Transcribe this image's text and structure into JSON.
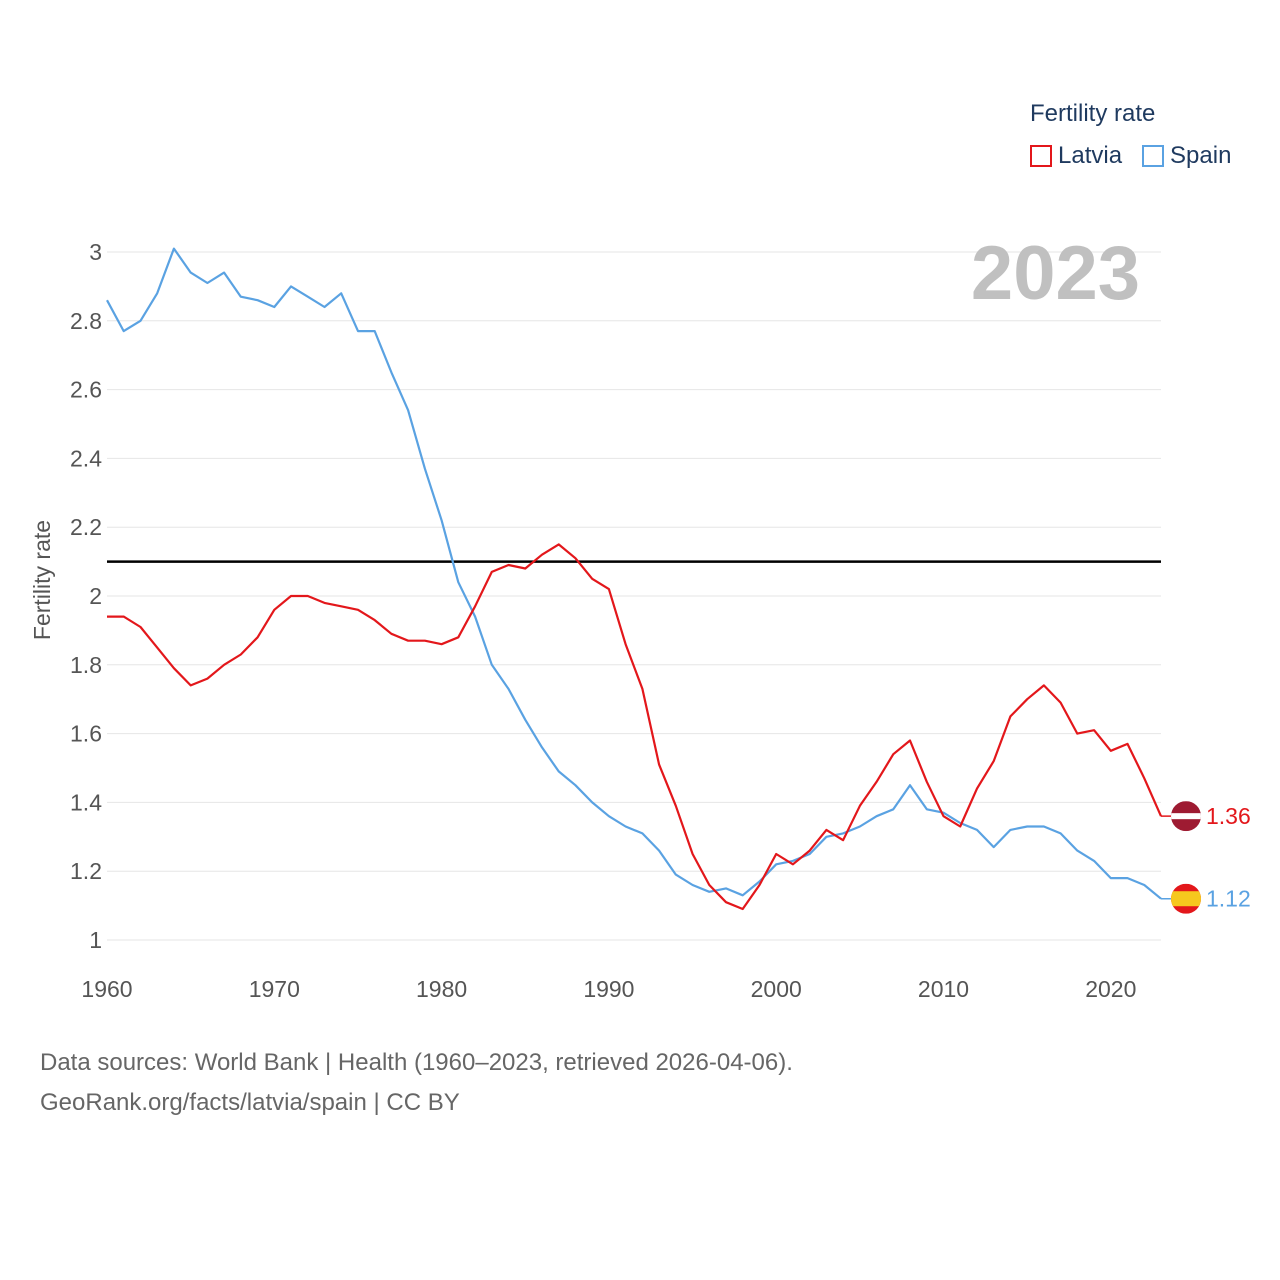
{
  "legend": {
    "title": "Fertility rate"
  },
  "footer": {
    "line1": "Data sources: World Bank | Health (1960–2023, retrieved 2026-04-06).",
    "line2": "GeoRank.org/facts/latvia/spain | CC BY"
  },
  "chart_data": {
    "type": "line",
    "title": "Fertility rate",
    "year_label": "2023",
    "xlabel": "",
    "ylabel": "Fertility rate",
    "xlim": [
      1960,
      2023
    ],
    "ylim": [
      1,
      3
    ],
    "x_ticks": [
      "1960",
      "1970",
      "1980",
      "1990",
      "2000",
      "2010",
      "2020"
    ],
    "y_ticks": [
      "1",
      "1.2",
      "1.4",
      "1.6",
      "1.8",
      "2",
      "2.2",
      "2.4",
      "2.6",
      "2.8",
      "3"
    ],
    "reference_line": {
      "y": 2.1,
      "color": "#000000"
    },
    "grid": true,
    "legend_position": "top-right",
    "x": [
      1960,
      1961,
      1962,
      1963,
      1964,
      1965,
      1966,
      1967,
      1968,
      1969,
      1970,
      1971,
      1972,
      1973,
      1974,
      1975,
      1976,
      1977,
      1978,
      1979,
      1980,
      1981,
      1982,
      1983,
      1984,
      1985,
      1986,
      1987,
      1988,
      1989,
      1990,
      1991,
      1992,
      1993,
      1994,
      1995,
      1996,
      1997,
      1998,
      1999,
      2000,
      2001,
      2002,
      2003,
      2004,
      2005,
      2006,
      2007,
      2008,
      2009,
      2010,
      2011,
      2012,
      2013,
      2014,
      2015,
      2016,
      2017,
      2018,
      2019,
      2020,
      2021,
      2022,
      2023
    ],
    "series": [
      {
        "name": "Latvia",
        "color": "#e3171b",
        "end_label": "1.36",
        "values": [
          1.94,
          1.94,
          1.91,
          1.85,
          1.79,
          1.74,
          1.76,
          1.8,
          1.83,
          1.88,
          1.96,
          2.0,
          2.0,
          1.98,
          1.97,
          1.96,
          1.93,
          1.89,
          1.87,
          1.87,
          1.86,
          1.88,
          1.97,
          2.07,
          2.09,
          2.08,
          2.12,
          2.15,
          2.11,
          2.05,
          2.02,
          1.86,
          1.73,
          1.51,
          1.39,
          1.25,
          1.16,
          1.11,
          1.09,
          1.16,
          1.25,
          1.22,
          1.26,
          1.32,
          1.29,
          1.39,
          1.46,
          1.54,
          1.58,
          1.46,
          1.36,
          1.33,
          1.44,
          1.52,
          1.65,
          1.7,
          1.74,
          1.69,
          1.6,
          1.61,
          1.55,
          1.57,
          1.47,
          1.36
        ]
      },
      {
        "name": "Spain",
        "color": "#5aa2e2",
        "end_label": "1.12",
        "values": [
          2.86,
          2.77,
          2.8,
          2.88,
          3.01,
          2.94,
          2.91,
          2.94,
          2.87,
          2.86,
          2.84,
          2.9,
          2.87,
          2.84,
          2.88,
          2.77,
          2.77,
          2.65,
          2.54,
          2.37,
          2.22,
          2.04,
          1.94,
          1.8,
          1.73,
          1.64,
          1.56,
          1.49,
          1.45,
          1.4,
          1.36,
          1.33,
          1.31,
          1.26,
          1.19,
          1.16,
          1.14,
          1.15,
          1.13,
          1.17,
          1.22,
          1.23,
          1.25,
          1.3,
          1.31,
          1.33,
          1.36,
          1.38,
          1.45,
          1.38,
          1.37,
          1.34,
          1.32,
          1.27,
          1.32,
          1.33,
          1.33,
          1.31,
          1.26,
          1.23,
          1.18,
          1.18,
          1.16,
          1.12
        ]
      }
    ]
  }
}
